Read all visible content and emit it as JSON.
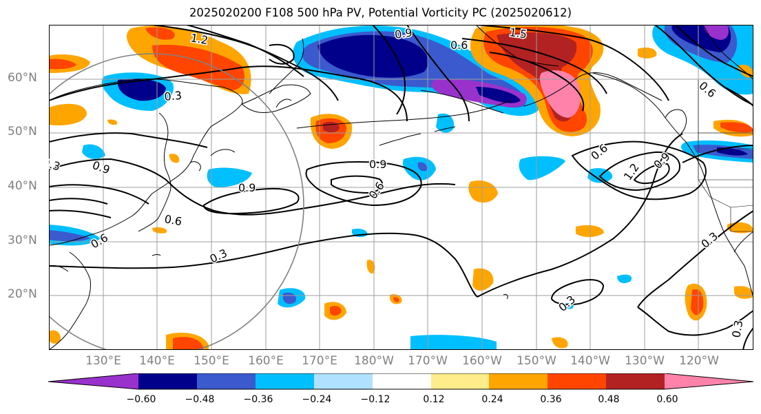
{
  "title": "2025020200 F108 500 hPa PV, Potential Vorticity PC (2025020612)",
  "lat_labels": [
    "60°N",
    "50°N",
    "40°N",
    "30°N",
    "20°N"
  ],
  "lon_labels": [
    "130°E",
    "140°E",
    "150°E",
    "160°E",
    "170°E",
    "180°W",
    "170°W",
    "160°W",
    "150°W",
    "140°W",
    "130°W",
    "120°W"
  ],
  "contour_labels": [
    "1.2",
    "1.5",
    "0.9",
    "0.6",
    "0.3",
    "0.3",
    "0.9",
    "0.6",
    "0.9",
    "0.6",
    "0.3",
    "0.6",
    "0.9",
    "1.2",
    "0.6",
    "0.3",
    "0.3",
    "0.3",
    "0.9",
    "0.6"
  ],
  "colorbar": {
    "ticks": [
      "−0.60",
      "−0.48",
      "−0.36",
      "−0.24",
      "−0.12",
      "0.12",
      "0.24",
      "0.36",
      "0.48",
      "0.60"
    ],
    "colors": [
      "#9932cc",
      "#00008b",
      "#3a5acd",
      "#00bfff",
      "#b0e2ff",
      "#ffffff",
      "#ffec8b",
      "#ffa500",
      "#ff4500",
      "#b22222",
      "#ff82ab"
    ]
  }
}
